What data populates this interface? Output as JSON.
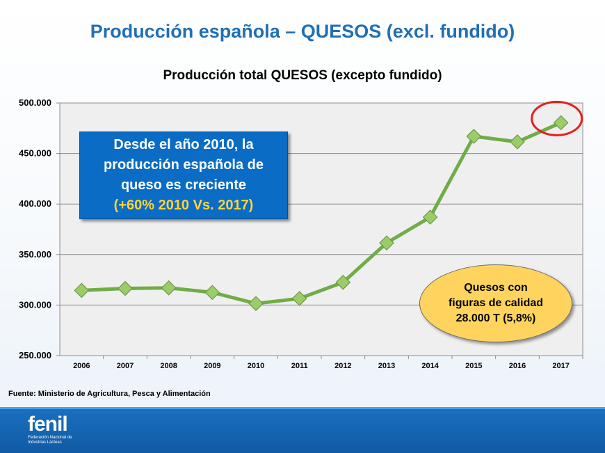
{
  "slide_title": "Producción española – QUESOS (excl. fundido)",
  "chart_data": {
    "type": "line",
    "title": "Producción total QUESOS (excepto fundido)",
    "categories": [
      "2006",
      "2007",
      "2008",
      "2009",
      "2010",
      "2011",
      "2012",
      "2013",
      "2014",
      "2015",
      "2016",
      "2017"
    ],
    "values": [
      314500,
      316500,
      317000,
      312500,
      301500,
      306500,
      322500,
      361500,
      387000,
      467000,
      461500,
      480500
    ],
    "ylim": [
      250000,
      500000
    ],
    "ytick_values": [
      250000,
      300000,
      350000,
      400000,
      450000,
      500000
    ],
    "ytick_labels": [
      "250.000",
      "300.000",
      "350.000",
      "400.000",
      "450.000",
      "500.000"
    ],
    "grid": true,
    "colors": {
      "line": "#70ad47",
      "marker": "#9acd6a",
      "marker_edge": "#6e9a45",
      "highlight": "#e31f1f",
      "plot_bg": "#efeff0"
    },
    "highlight_category": "2017"
  },
  "callout_blue": {
    "lines": [
      "Desde el año 2010, la",
      "producción española de",
      "queso es creciente"
    ],
    "highlight": "(+60% 2010 Vs. 2017)"
  },
  "callout_ellipse": {
    "lines": [
      "Quesos con",
      "figuras de calidad",
      "28.000 T (5,8%)"
    ]
  },
  "source": "Fuente: Ministerio de Agricultura, Pesca y Alimentación",
  "logo": {
    "word": "fenil",
    "sub": "Federación Nacional de Industrias Lácteas"
  }
}
